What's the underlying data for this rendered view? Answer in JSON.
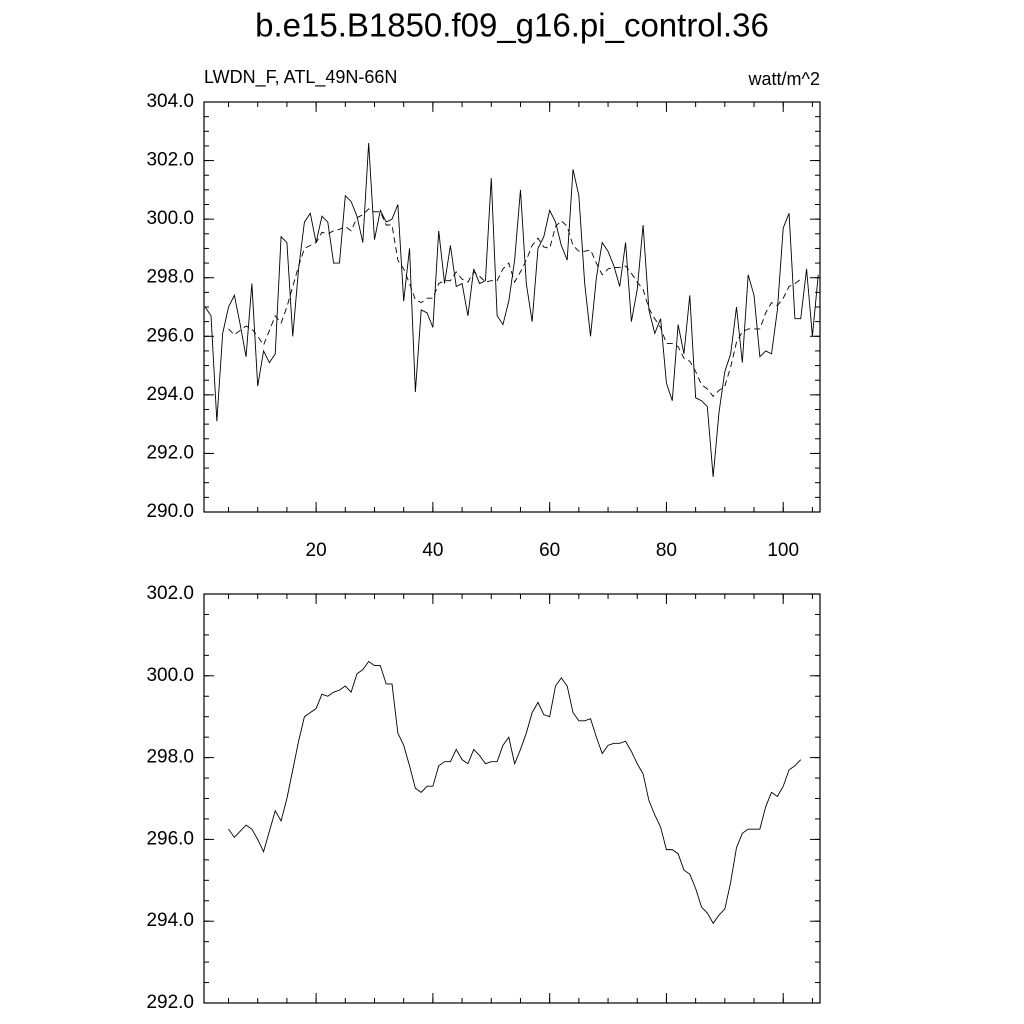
{
  "title": "b.e15.B1850.f09_g16.pi_control.36",
  "chart_data": [
    {
      "type": "line",
      "left_label": "LWDN_F, ATL_49N-66N",
      "right_label": "watt/m^2",
      "x": [
        1,
        2,
        3,
        4,
        5,
        6,
        7,
        8,
        9,
        10,
        11,
        12,
        13,
        14,
        15,
        16,
        17,
        18,
        19,
        20,
        21,
        22,
        23,
        24,
        25,
        26,
        27,
        28,
        29,
        30,
        31,
        32,
        33,
        34,
        35,
        36,
        37,
        38,
        39,
        40,
        41,
        42,
        43,
        44,
        45,
        46,
        47,
        48,
        49,
        50,
        51,
        52,
        53,
        54,
        55,
        56,
        57,
        58,
        59,
        60,
        61,
        62,
        63,
        64,
        65,
        66,
        67,
        68,
        69,
        70,
        71,
        72,
        73,
        74,
        75,
        76,
        77,
        78,
        79,
        80,
        81,
        82,
        83,
        84,
        85,
        86,
        87,
        88,
        89,
        90,
        91,
        92,
        93,
        94,
        95,
        96,
        97,
        98,
        99,
        100,
        101,
        102,
        103,
        104,
        105,
        106
      ],
      "series": [
        {
          "color": "#000000",
          "dash": false,
          "values": [
            297.0,
            296.7,
            293.1,
            296.1,
            297.0,
            297.4,
            296.4,
            295.3,
            297.8,
            294.3,
            295.5,
            295.1,
            295.4,
            299.4,
            299.2,
            296.0,
            298.3,
            299.9,
            300.2,
            299.2,
            300.1,
            299.9,
            298.5,
            298.5,
            300.8,
            300.6,
            300.1,
            299.2,
            302.6,
            299.3,
            300.3,
            299.9,
            300.0,
            300.5,
            297.2,
            299.0,
            294.1,
            296.9,
            296.8,
            296.3,
            299.6,
            297.8,
            299.1,
            297.7,
            297.8,
            296.7,
            298.3,
            297.8,
            297.9,
            301.4,
            296.7,
            296.4,
            297.2,
            298.6,
            301.0,
            297.8,
            296.5,
            299.0,
            299.4,
            300.3,
            299.9,
            299.1,
            298.6,
            301.7,
            300.8,
            297.8,
            296.0,
            298.0,
            299.2,
            298.9,
            298.4,
            297.7,
            299.2,
            296.5,
            297.6,
            299.8,
            296.9,
            296.1,
            296.6,
            294.4,
            293.8,
            296.4,
            295.4,
            297.4,
            293.9,
            293.8,
            293.6,
            291.2,
            293.4,
            294.8,
            295.4,
            297.0,
            295.1,
            298.1,
            297.4,
            295.3,
            295.5,
            295.4,
            296.9,
            299.7,
            300.2,
            296.6,
            296.6,
            298.3,
            296.0,
            298.1
          ]
        },
        {
          "color": "#000000",
          "dash": true,
          "values": [
            null,
            null,
            null,
            null,
            296.25,
            296.05,
            296.2,
            296.35,
            296.25,
            296.0,
            295.7,
            296.2,
            296.7,
            296.45,
            297.0,
            297.7,
            298.4,
            299.0,
            299.1,
            299.2,
            299.55,
            299.5,
            299.6,
            299.65,
            299.75,
            299.6,
            300.05,
            300.15,
            300.35,
            300.25,
            300.25,
            299.8,
            299.8,
            298.6,
            298.3,
            297.8,
            297.25,
            297.15,
            297.3,
            297.3,
            297.8,
            297.9,
            297.9,
            298.2,
            297.95,
            297.85,
            298.2,
            298.05,
            297.85,
            297.9,
            297.9,
            298.3,
            298.5,
            297.85,
            298.2,
            298.6,
            299.1,
            299.35,
            299.05,
            299.0,
            299.75,
            299.95,
            299.75,
            299.1,
            298.9,
            298.9,
            298.95,
            298.5,
            298.1,
            298.3,
            298.35,
            298.35,
            298.4,
            298.15,
            297.85,
            297.6,
            296.95,
            296.6,
            296.3,
            295.75,
            295.75,
            295.65,
            295.25,
            295.15,
            294.8,
            294.35,
            294.2,
            293.95,
            294.15,
            294.3,
            294.95,
            295.8,
            296.15,
            296.25,
            296.25,
            296.25,
            296.8,
            297.15,
            297.05,
            297.3,
            297.7,
            297.8,
            297.95,
            null,
            null,
            null
          ]
        }
      ],
      "xlim": [
        0.8,
        106.3
      ],
      "xticks": [
        20,
        40,
        60,
        80,
        100
      ],
      "xtick_labels": true,
      "ylim": [
        290,
        304
      ],
      "yticks": [
        {
          "value": 290,
          "label": "290.0"
        },
        {
          "value": 292,
          "label": "292.0"
        },
        {
          "value": 294,
          "label": "294.0"
        },
        {
          "value": 296,
          "label": "296.0"
        },
        {
          "value": 298,
          "label": "298.0"
        },
        {
          "value": 300,
          "label": "300.0"
        },
        {
          "value": 302,
          "label": "302.0"
        },
        {
          "value": 304,
          "label": "304.0"
        }
      ]
    },
    {
      "type": "line",
      "x": [
        1,
        2,
        3,
        4,
        5,
        6,
        7,
        8,
        9,
        10,
        11,
        12,
        13,
        14,
        15,
        16,
        17,
        18,
        19,
        20,
        21,
        22,
        23,
        24,
        25,
        26,
        27,
        28,
        29,
        30,
        31,
        32,
        33,
        34,
        35,
        36,
        37,
        38,
        39,
        40,
        41,
        42,
        43,
        44,
        45,
        46,
        47,
        48,
        49,
        50,
        51,
        52,
        53,
        54,
        55,
        56,
        57,
        58,
        59,
        60,
        61,
        62,
        63,
        64,
        65,
        66,
        67,
        68,
        69,
        70,
        71,
        72,
        73,
        74,
        75,
        76,
        77,
        78,
        79,
        80,
        81,
        82,
        83,
        84,
        85,
        86,
        87,
        88,
        89,
        90,
        91,
        92,
        93,
        94,
        95,
        96,
        97,
        98,
        99,
        100,
        101,
        102,
        103,
        104,
        105,
        106
      ],
      "series": [
        {
          "color": "#000000",
          "dash": false,
          "values": [
            null,
            null,
            null,
            null,
            296.25,
            296.05,
            296.2,
            296.35,
            296.25,
            296.0,
            295.7,
            296.2,
            296.7,
            296.45,
            297.0,
            297.7,
            298.4,
            299.0,
            299.1,
            299.2,
            299.55,
            299.5,
            299.6,
            299.65,
            299.75,
            299.6,
            300.05,
            300.15,
            300.35,
            300.25,
            300.25,
            299.8,
            299.8,
            298.6,
            298.3,
            297.8,
            297.25,
            297.15,
            297.3,
            297.3,
            297.8,
            297.9,
            297.9,
            298.2,
            297.95,
            297.85,
            298.2,
            298.05,
            297.85,
            297.9,
            297.9,
            298.3,
            298.5,
            297.85,
            298.2,
            298.6,
            299.1,
            299.35,
            299.05,
            299.0,
            299.75,
            299.95,
            299.75,
            299.1,
            298.9,
            298.9,
            298.95,
            298.5,
            298.1,
            298.3,
            298.35,
            298.35,
            298.4,
            298.15,
            297.85,
            297.6,
            296.95,
            296.6,
            296.3,
            295.75,
            295.75,
            295.65,
            295.25,
            295.15,
            294.8,
            294.35,
            294.2,
            293.95,
            294.15,
            294.3,
            294.95,
            295.8,
            296.15,
            296.25,
            296.25,
            296.25,
            296.8,
            297.15,
            297.05,
            297.3,
            297.7,
            297.8,
            297.95,
            null,
            null,
            null
          ]
        }
      ],
      "xlim": [
        0.8,
        106.3
      ],
      "xticks": [
        20,
        40,
        60,
        80,
        100
      ],
      "xtick_labels": false,
      "ylim": [
        292,
        302
      ],
      "yticks": [
        {
          "value": 292,
          "label": "292.0"
        },
        {
          "value": 294,
          "label": "294.0"
        },
        {
          "value": 296,
          "label": "296.0"
        },
        {
          "value": 298,
          "label": "298.0"
        },
        {
          "value": 300,
          "label": "300.0"
        },
        {
          "value": 302,
          "label": "302.0"
        }
      ]
    }
  ]
}
